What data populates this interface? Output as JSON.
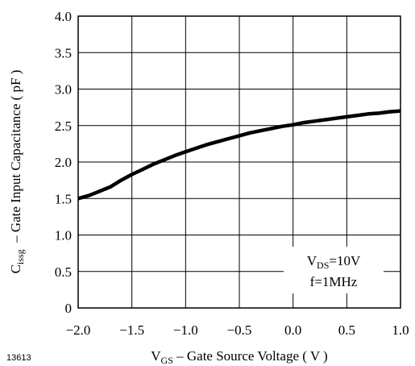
{
  "figure_id": "13613",
  "chart_data": {
    "type": "line",
    "title": "",
    "xlabel": {
      "main": "V",
      "sub": "GS",
      "rest": " – Gate Source Voltage ( V )"
    },
    "ylabel": {
      "main": "C",
      "sub": "issg",
      "rest": "  – Gate Input Capacitance ( pF )"
    },
    "xlim": [
      -2.0,
      1.0
    ],
    "ylim": [
      0,
      4.0
    ],
    "x_ticks": [
      "−2.0",
      "−1.5",
      "−1.0",
      "−0.5",
      "0.0",
      "0.5",
      "1.0"
    ],
    "x_tick_values": [
      -2.0,
      -1.5,
      -1.0,
      -0.5,
      0.0,
      0.5,
      1.0
    ],
    "y_ticks": [
      "0",
      "0.5",
      "1.0",
      "1.5",
      "2.0",
      "2.5",
      "3.0",
      "3.5",
      "4.0"
    ],
    "y_tick_values": [
      0,
      0.5,
      1.0,
      1.5,
      2.0,
      2.5,
      3.0,
      3.5,
      4.0
    ],
    "grid": true,
    "series": [
      {
        "x": [
          -2.0,
          -1.9,
          -1.8,
          -1.7,
          -1.6,
          -1.5,
          -1.4,
          -1.3,
          -1.2,
          -1.1,
          -1.0,
          -0.9,
          -0.8,
          -0.7,
          -0.6,
          -0.5,
          -0.4,
          -0.3,
          -0.2,
          -0.1,
          0.0,
          0.1,
          0.2,
          0.3,
          0.4,
          0.5,
          0.6,
          0.7,
          0.8,
          0.9,
          1.0
        ],
        "y": [
          1.5,
          1.54,
          1.6,
          1.66,
          1.75,
          1.83,
          1.9,
          1.97,
          2.03,
          2.09,
          2.14,
          2.19,
          2.24,
          2.28,
          2.32,
          2.36,
          2.4,
          2.43,
          2.46,
          2.49,
          2.51,
          2.54,
          2.56,
          2.58,
          2.6,
          2.62,
          2.64,
          2.66,
          2.67,
          2.69,
          2.7
        ]
      }
    ],
    "annotation": {
      "line1": {
        "main": "V",
        "sub": "DS",
        "rest": "=10V"
      },
      "line2": "f=1MHz"
    }
  }
}
